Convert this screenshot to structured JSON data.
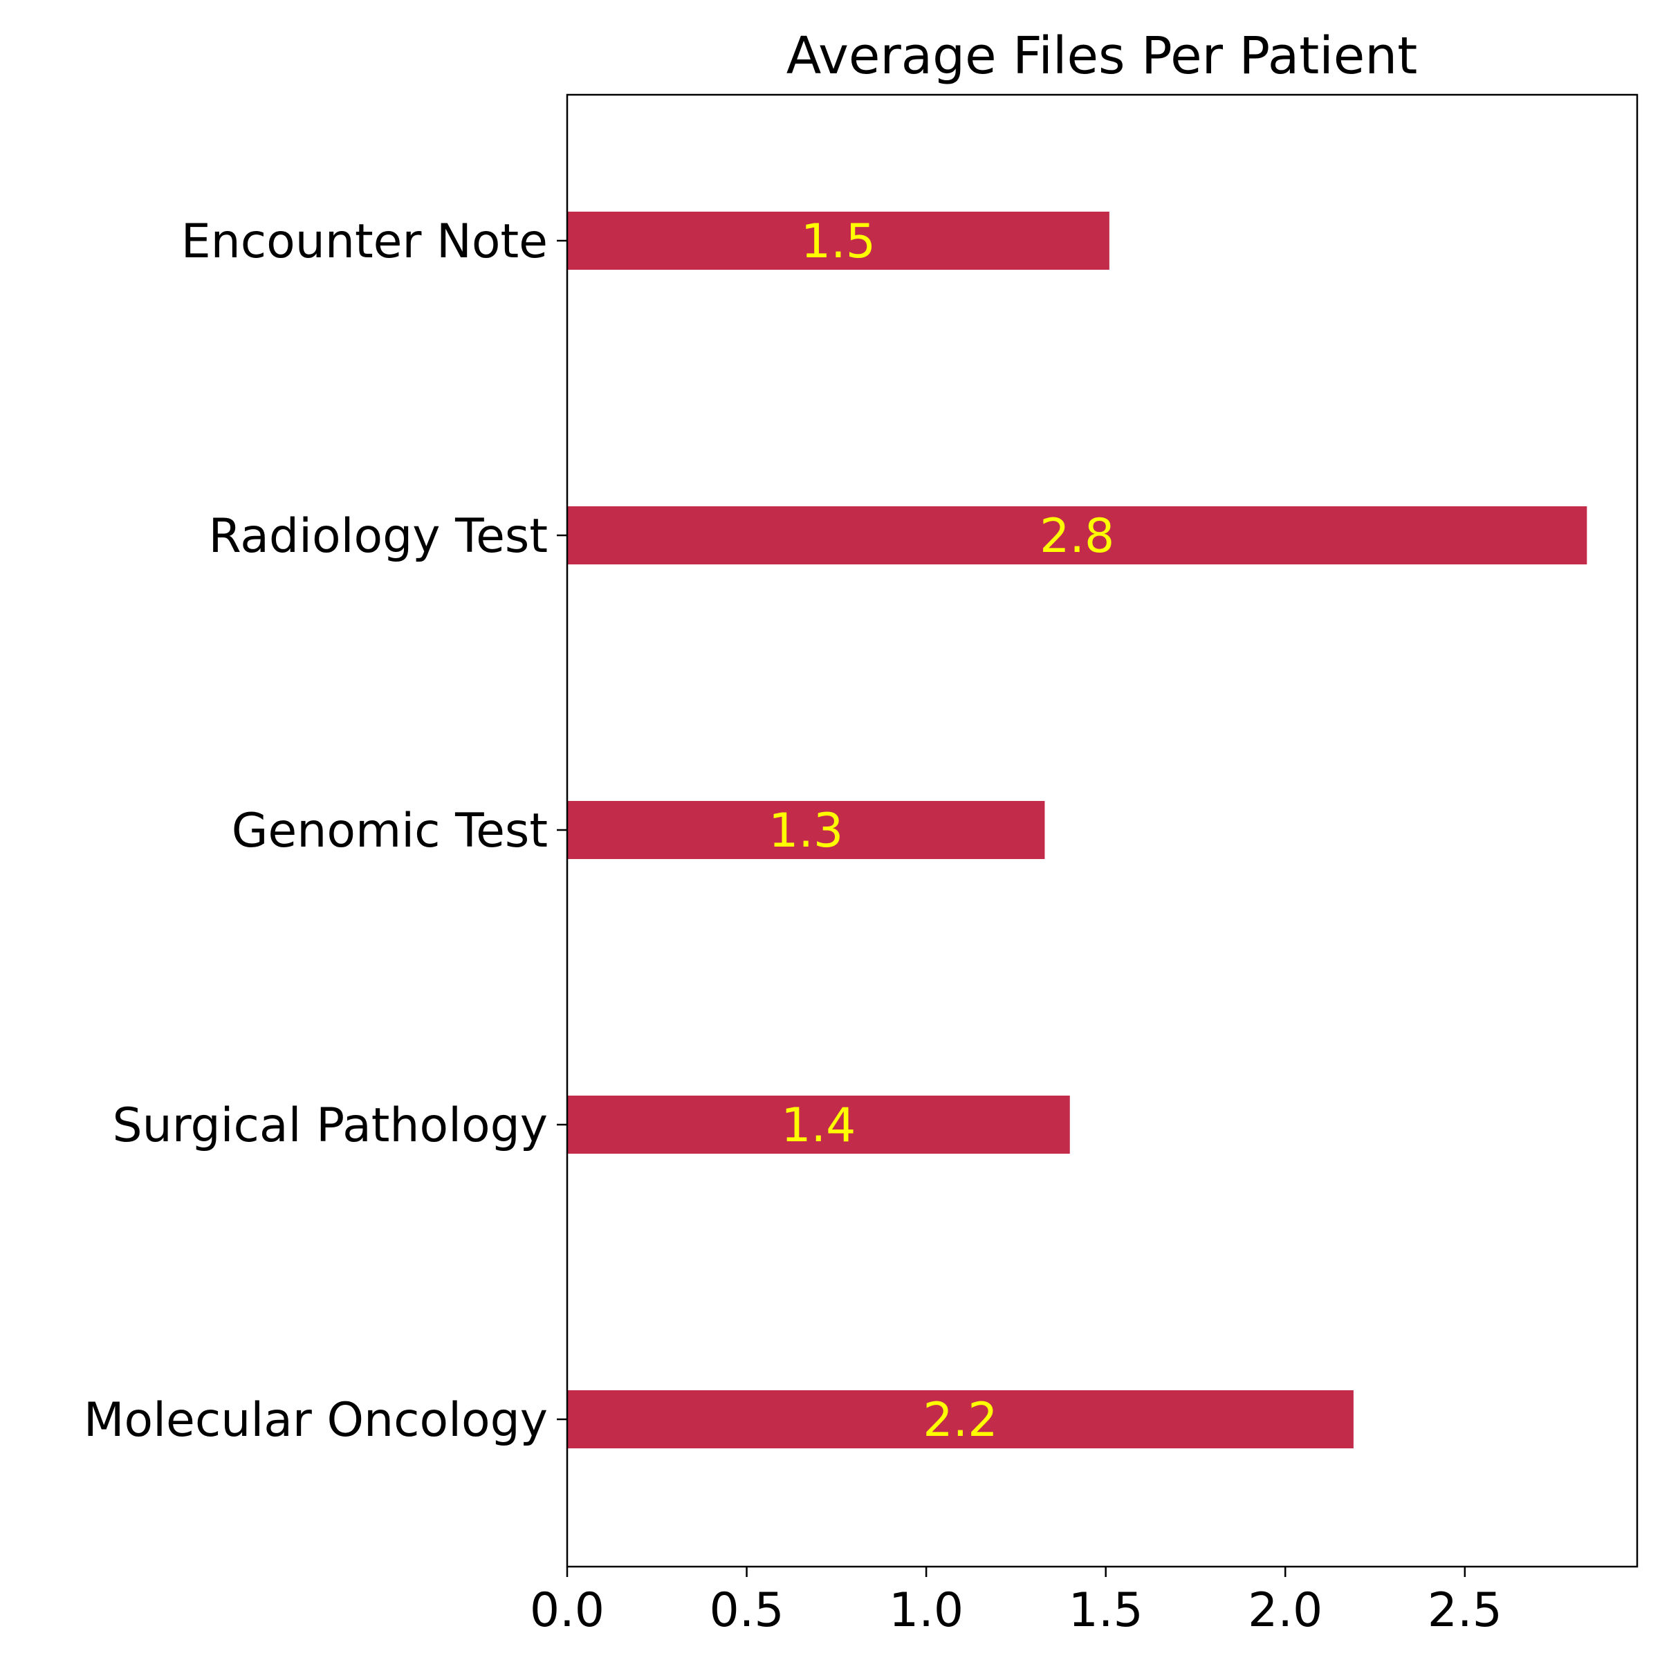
{
  "chart_data": {
    "type": "bar",
    "orientation": "horizontal",
    "title": "Average Files Per Patient",
    "xlabel": "",
    "ylabel": "",
    "categories": [
      "Encounter Note",
      "Radiology Test",
      "Genomic Test",
      "Surgical Pathology",
      "Molecular Oncology"
    ],
    "values": [
      1.51,
      2.84,
      1.33,
      1.4,
      2.19
    ],
    "data_labels": [
      "1.5",
      "2.8",
      "1.3",
      "1.4",
      "2.2"
    ],
    "xlim": [
      0,
      2.98
    ],
    "xticks": [
      0.0,
      0.5,
      1.0,
      1.5,
      2.0,
      2.5
    ],
    "xtick_labels": [
      "0.0",
      "0.5",
      "1.0",
      "1.5",
      "2.0",
      "2.5"
    ],
    "bar_color": "#c22b4a",
    "label_color": "#ffff00",
    "grid": false,
    "legend": "none"
  }
}
